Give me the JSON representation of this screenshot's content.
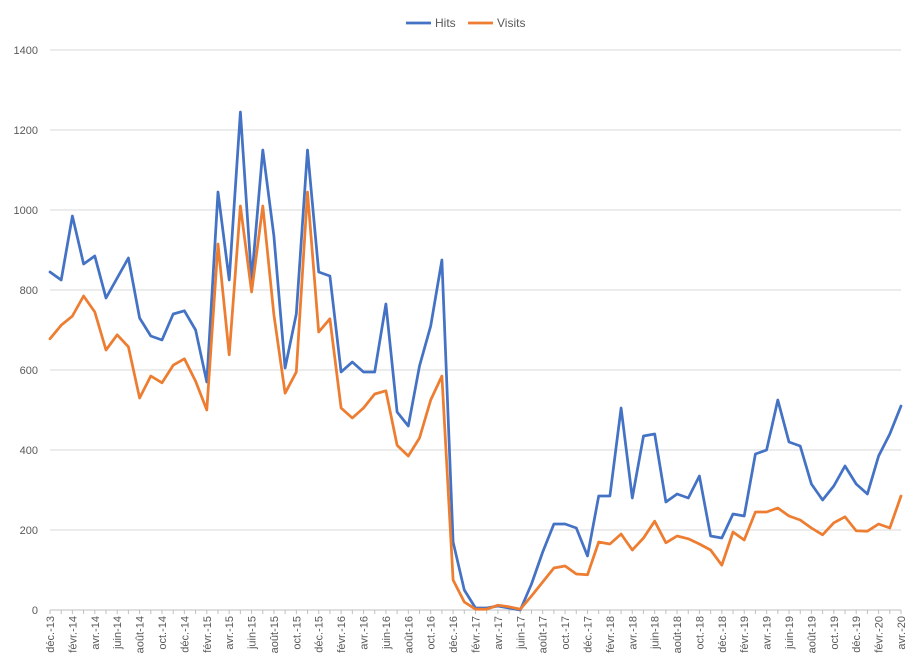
{
  "chart_data": {
    "type": "line",
    "legend_position": "top",
    "grid": true,
    "ylim": [
      0,
      1400
    ],
    "y_ticks": [
      0,
      200,
      400,
      600,
      800,
      1000,
      1200,
      1400
    ],
    "x": [
      "déc.-13",
      "janv.-14",
      "févr.-14",
      "mars-14",
      "avr.-14",
      "mai-14",
      "juin-14",
      "juil.-14",
      "août-14",
      "sept.-14",
      "oct.-14",
      "nov.-14",
      "déc.-14",
      "janv.-15",
      "févr.-15",
      "mars-15",
      "avr.-15",
      "mai-15",
      "juin-15",
      "juil.-15",
      "août-15",
      "sept.-15",
      "oct.-15",
      "nov.-15",
      "déc.-15",
      "janv.-16",
      "févr.-16",
      "mars-16",
      "avr.-16",
      "mai-16",
      "juin-16",
      "juil.-16",
      "août-16",
      "sept.-16",
      "oct.-16",
      "nov.-16",
      "déc.-16",
      "janv.-17",
      "févr.-17",
      "mars-17",
      "avr.-17",
      "mai-17",
      "juin-17",
      "juil.-17",
      "août-17",
      "sept.-17",
      "oct.-17",
      "nov.-17",
      "déc.-17",
      "janv.-18",
      "févr.-18",
      "mars-18",
      "avr.-18",
      "mai-18",
      "juin-18",
      "juil.-18",
      "août-18",
      "sept.-18",
      "oct.-18",
      "nov.-18",
      "déc.-18",
      "janv.-19",
      "févr.-19",
      "mars-19",
      "avr.-19",
      "mai-19",
      "juin-19",
      "juil.-19",
      "août-19",
      "sept.-19",
      "oct.-19",
      "nov.-19",
      "déc.-19",
      "janv.-20",
      "févr.-20",
      "mars-20",
      "avr.-20"
    ],
    "x_tick_labels": [
      "déc.-13",
      "févr.-14",
      "avr.-14",
      "juin-14",
      "août-14",
      "oct.-14",
      "déc.-14",
      "févr.-15",
      "avr.-15",
      "juin-15",
      "août-15",
      "oct.-15",
      "déc.-15",
      "févr.-16",
      "avr.-16",
      "juin-16",
      "août-16",
      "oct.-16",
      "déc.-16",
      "févr.-17",
      "avr.-17",
      "juin-17",
      "août-17",
      "oct.-17",
      "déc.-17",
      "févr.-18",
      "avr.-18",
      "juin-18",
      "août-18",
      "oct.-18",
      "déc.-18",
      "févr.-19",
      "avr.-19",
      "juin-19",
      "août-19",
      "oct.-19",
      "déc.-19",
      "févr.-20",
      "avr.-20"
    ],
    "series": [
      {
        "name": "Hits",
        "color": "#4472C4",
        "values": [
          845,
          825,
          985,
          865,
          885,
          780,
          830,
          880,
          730,
          685,
          675,
          740,
          748,
          700,
          570,
          1045,
          825,
          1245,
          825,
          1150,
          935,
          605,
          740,
          1150,
          845,
          835,
          595,
          620,
          595,
          595,
          765,
          495,
          460,
          610,
          710,
          875,
          170,
          50,
          5,
          5,
          10,
          5,
          0,
          65,
          145,
          215,
          215,
          205,
          135,
          285,
          285,
          505,
          280,
          435,
          440,
          270,
          290,
          280,
          335,
          185,
          180,
          240,
          235,
          390,
          400,
          525,
          420,
          410,
          315,
          275,
          310,
          360,
          315,
          290,
          385,
          440,
          510
        ]
      },
      {
        "name": "Visits",
        "color": "#ED7D31",
        "values": [
          678,
          712,
          735,
          785,
          745,
          650,
          688,
          658,
          530,
          585,
          568,
          612,
          628,
          572,
          500,
          915,
          638,
          1010,
          795,
          1010,
          738,
          542,
          595,
          1045,
          695,
          728,
          505,
          480,
          505,
          540,
          548,
          412,
          385,
          430,
          525,
          585,
          75,
          20,
          2,
          2,
          12,
          8,
          2,
          35,
          70,
          105,
          110,
          90,
          88,
          170,
          165,
          190,
          150,
          180,
          222,
          168,
          185,
          178,
          165,
          150,
          112,
          195,
          175,
          245,
          245,
          255,
          235,
          225,
          205,
          188,
          218,
          233,
          198,
          197,
          215,
          205,
          285
        ]
      }
    ]
  }
}
